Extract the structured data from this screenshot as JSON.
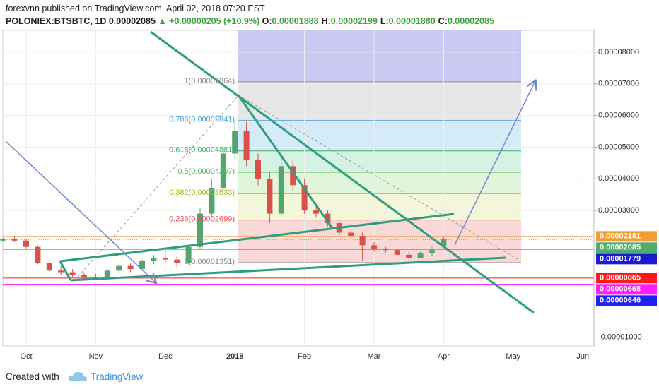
{
  "header": {
    "byline": "forexvnn published on TradingView.com, April 02, 2018 07:20 EST",
    "symbol": "POLONIEX:BTSBTC, 1D",
    "last": "0.00002085",
    "arrow": "▲",
    "change": "+0.00000205 (+10.9%)",
    "ohlc": [
      {
        "label": "O:",
        "value": "0.00001888"
      },
      {
        "label": "H:",
        "value": "0.00002199"
      },
      {
        "label": "L:",
        "value": "0.00001880"
      },
      {
        "label": "C:",
        "value": "0.00002085"
      }
    ]
  },
  "chart_data": {
    "type": "candlestick",
    "categories": [
      null,
      null,
      "Oct",
      null,
      null,
      null,
      null,
      null,
      "Nov",
      null,
      null,
      null,
      null,
      null,
      "Dec",
      null,
      null,
      null,
      null,
      null,
      "2018",
      null,
      null,
      null,
      null,
      null,
      "Feb",
      null,
      null,
      null,
      null,
      null,
      "Mar",
      null,
      null,
      null,
      null,
      null,
      "Apr",
      null,
      null,
      null,
      null,
      null,
      "May",
      null,
      null,
      null,
      null,
      null,
      "Jun"
    ],
    "open": [
      2.05e-05,
      2.1e-05,
      2.05e-05,
      1.85e-05,
      1.35e-05,
      1.1e-05,
      1.05e-05,
      9.5e-06,
      9e-06,
      8.5e-06,
      1.1e-05,
      1.25e-05,
      1.15e-05,
      1.4e-05,
      1.5e-05,
      1.45e-05,
      1.35e-05,
      1.85e-05,
      2.9e-05,
      3.7e-05,
      4.8e-05,
      5.5e-05,
      4.6e-05,
      4e-05,
      2.9e-05,
      4.4e-05,
      3.8e-05,
      3e-05,
      2.9e-05,
      2.6e-05,
      2.3e-05,
      2.2e-05,
      1.9e-05,
      1.8e-05,
      1.75e-05,
      1.6e-05,
      1.5e-05,
      1.65e-05,
      1.888e-05,
      null,
      null,
      null,
      null,
      null,
      null,
      null,
      null,
      null,
      null,
      null,
      null
    ],
    "high": [
      2.15e-05,
      2.2e-05,
      2.1e-05,
      1.9e-05,
      1.45e-05,
      1.25e-05,
      1.15e-05,
      1.05e-05,
      1e-05,
      1.15e-05,
      1.3e-05,
      1.35e-05,
      1.45e-05,
      1.6e-05,
      1.75e-05,
      1.55e-05,
      1.9e-05,
      3.1e-05,
      4e-05,
      5e-05,
      5.84e-05,
      5.8e-05,
      4.8e-05,
      4.2e-05,
      4.7e-05,
      4.6e-05,
      4e-05,
      3.2e-05,
      3e-05,
      2.7e-05,
      2.4e-05,
      2.3e-05,
      2e-05,
      1.85e-05,
      1.8e-05,
      1.7e-05,
      1.7e-05,
      1.85e-05,
      2.199e-05,
      null,
      null,
      null,
      null,
      null,
      null,
      null,
      null,
      null,
      null,
      null,
      null
    ],
    "low": [
      2e-05,
      2e-05,
      1.8e-05,
      1.3e-05,
      1.05e-05,
      9.5e-06,
      9e-06,
      8.5e-06,
      8e-06,
      8.2e-06,
      1e-05,
      1.05e-05,
      1.1e-05,
      1.3e-05,
      1.35e-05,
      1.2e-05,
      1.3e-05,
      1.8e-05,
      2.8e-05,
      3.6e-05,
      4.6e-05,
      4.4e-05,
      3.8e-05,
      2.6e-05,
      2.8e-05,
      3.6e-05,
      2.9e-05,
      2.8e-05,
      2.5e-05,
      2.2e-05,
      2.15e-05,
      1.4e-05,
      1.7e-05,
      1.65e-05,
      1.55e-05,
      1.45e-05,
      1.48e-05,
      1.55e-05,
      1.88e-05,
      null,
      null,
      null,
      null,
      null,
      null,
      null,
      null,
      null,
      null,
      null,
      null
    ],
    "close": [
      2.1e-05,
      2.05e-05,
      1.85e-05,
      1.35e-05,
      1.1e-05,
      1.05e-05,
      9.5e-06,
      9e-06,
      8.5e-06,
      1.1e-05,
      1.25e-05,
      1.15e-05,
      1.4e-05,
      1.5e-05,
      1.45e-05,
      1.35e-05,
      1.85e-05,
      2.9e-05,
      3.7e-05,
      4.8e-05,
      5.5e-05,
      4.6e-05,
      4e-05,
      2.9e-05,
      4.4e-05,
      3.8e-05,
      3e-05,
      2.9e-05,
      2.6e-05,
      2.3e-05,
      2.2e-05,
      1.9e-05,
      1.8e-05,
      1.75e-05,
      1.6e-05,
      1.5e-05,
      1.65e-05,
      1.75e-05,
      2.085e-05,
      null,
      null,
      null,
      null,
      null,
      null,
      null,
      null,
      null,
      null,
      null,
      null
    ],
    "up_color": "#53a46f",
    "down_color": "#d8514a",
    "ylim": [
      -1.28e-05,
      8.69e-05
    ],
    "yticks": [
      {
        "value": 8e-05,
        "label": "0.00008000"
      },
      {
        "value": 7e-05,
        "label": "0.00007000"
      },
      {
        "value": 6e-05,
        "label": "0.00006000"
      },
      {
        "value": 5e-05,
        "label": "0.00005000"
      },
      {
        "value": 4e-05,
        "label": "0.00004000"
      },
      {
        "value": 3e-05,
        "label": "0.00003000"
      },
      {
        "value": -1e-05,
        "label": "-0.00001000"
      }
    ],
    "grid": true,
    "fib_levels": [
      {
        "label": "1(0.00007064)",
        "value": 7.064e-05,
        "color": "#888888",
        "fill": "#e6e6e6"
      },
      {
        "label": "0.786(0.00005841)",
        "value": 5.841e-05,
        "color": "#4a9fd8",
        "fill": "#d5ebf8"
      },
      {
        "label": "0.618(0.00004881)",
        "value": 4.881e-05,
        "color": "#3fae6a",
        "fill": "#d6f2e3"
      },
      {
        "label": "0.5(0.00004207)",
        "value": 4.207e-05,
        "color": "#5cb85c",
        "fill": "#e0f5d9"
      },
      {
        "label": "0.382(0.00003533)",
        "value": 3.533e-05,
        "color": "#a7b820",
        "fill": "#f3f7d8"
      },
      {
        "label": "0.236(0.00002699)",
        "value": 2.699e-05,
        "color": "#e05555",
        "fill": "#f9d8d8"
      },
      {
        "label": "0(0.00001351)",
        "value": 1.351e-05,
        "color": "#888888"
      }
    ],
    "price_lines": [
      {
        "label": "0.00002181",
        "value": 2.181e-05,
        "color": "#f39c33"
      },
      {
        "label": "0.00002085",
        "value": 2.085e-05,
        "color": "#4cae6a"
      },
      {
        "label": "0.00001779",
        "value": 1.779e-05,
        "color": "#1a1ad0"
      },
      {
        "label": "0.00000865",
        "value": 8.65e-06,
        "color": "#ff1a1a"
      },
      {
        "label": "0.00000668",
        "value": 6.68e-06,
        "color": "#ff1aff"
      },
      {
        "label": "0.00000646",
        "value": 6.46e-06,
        "color": "#2020f0"
      }
    ]
  },
  "footer": {
    "created_with": "Created with",
    "brand": "TradingView"
  }
}
